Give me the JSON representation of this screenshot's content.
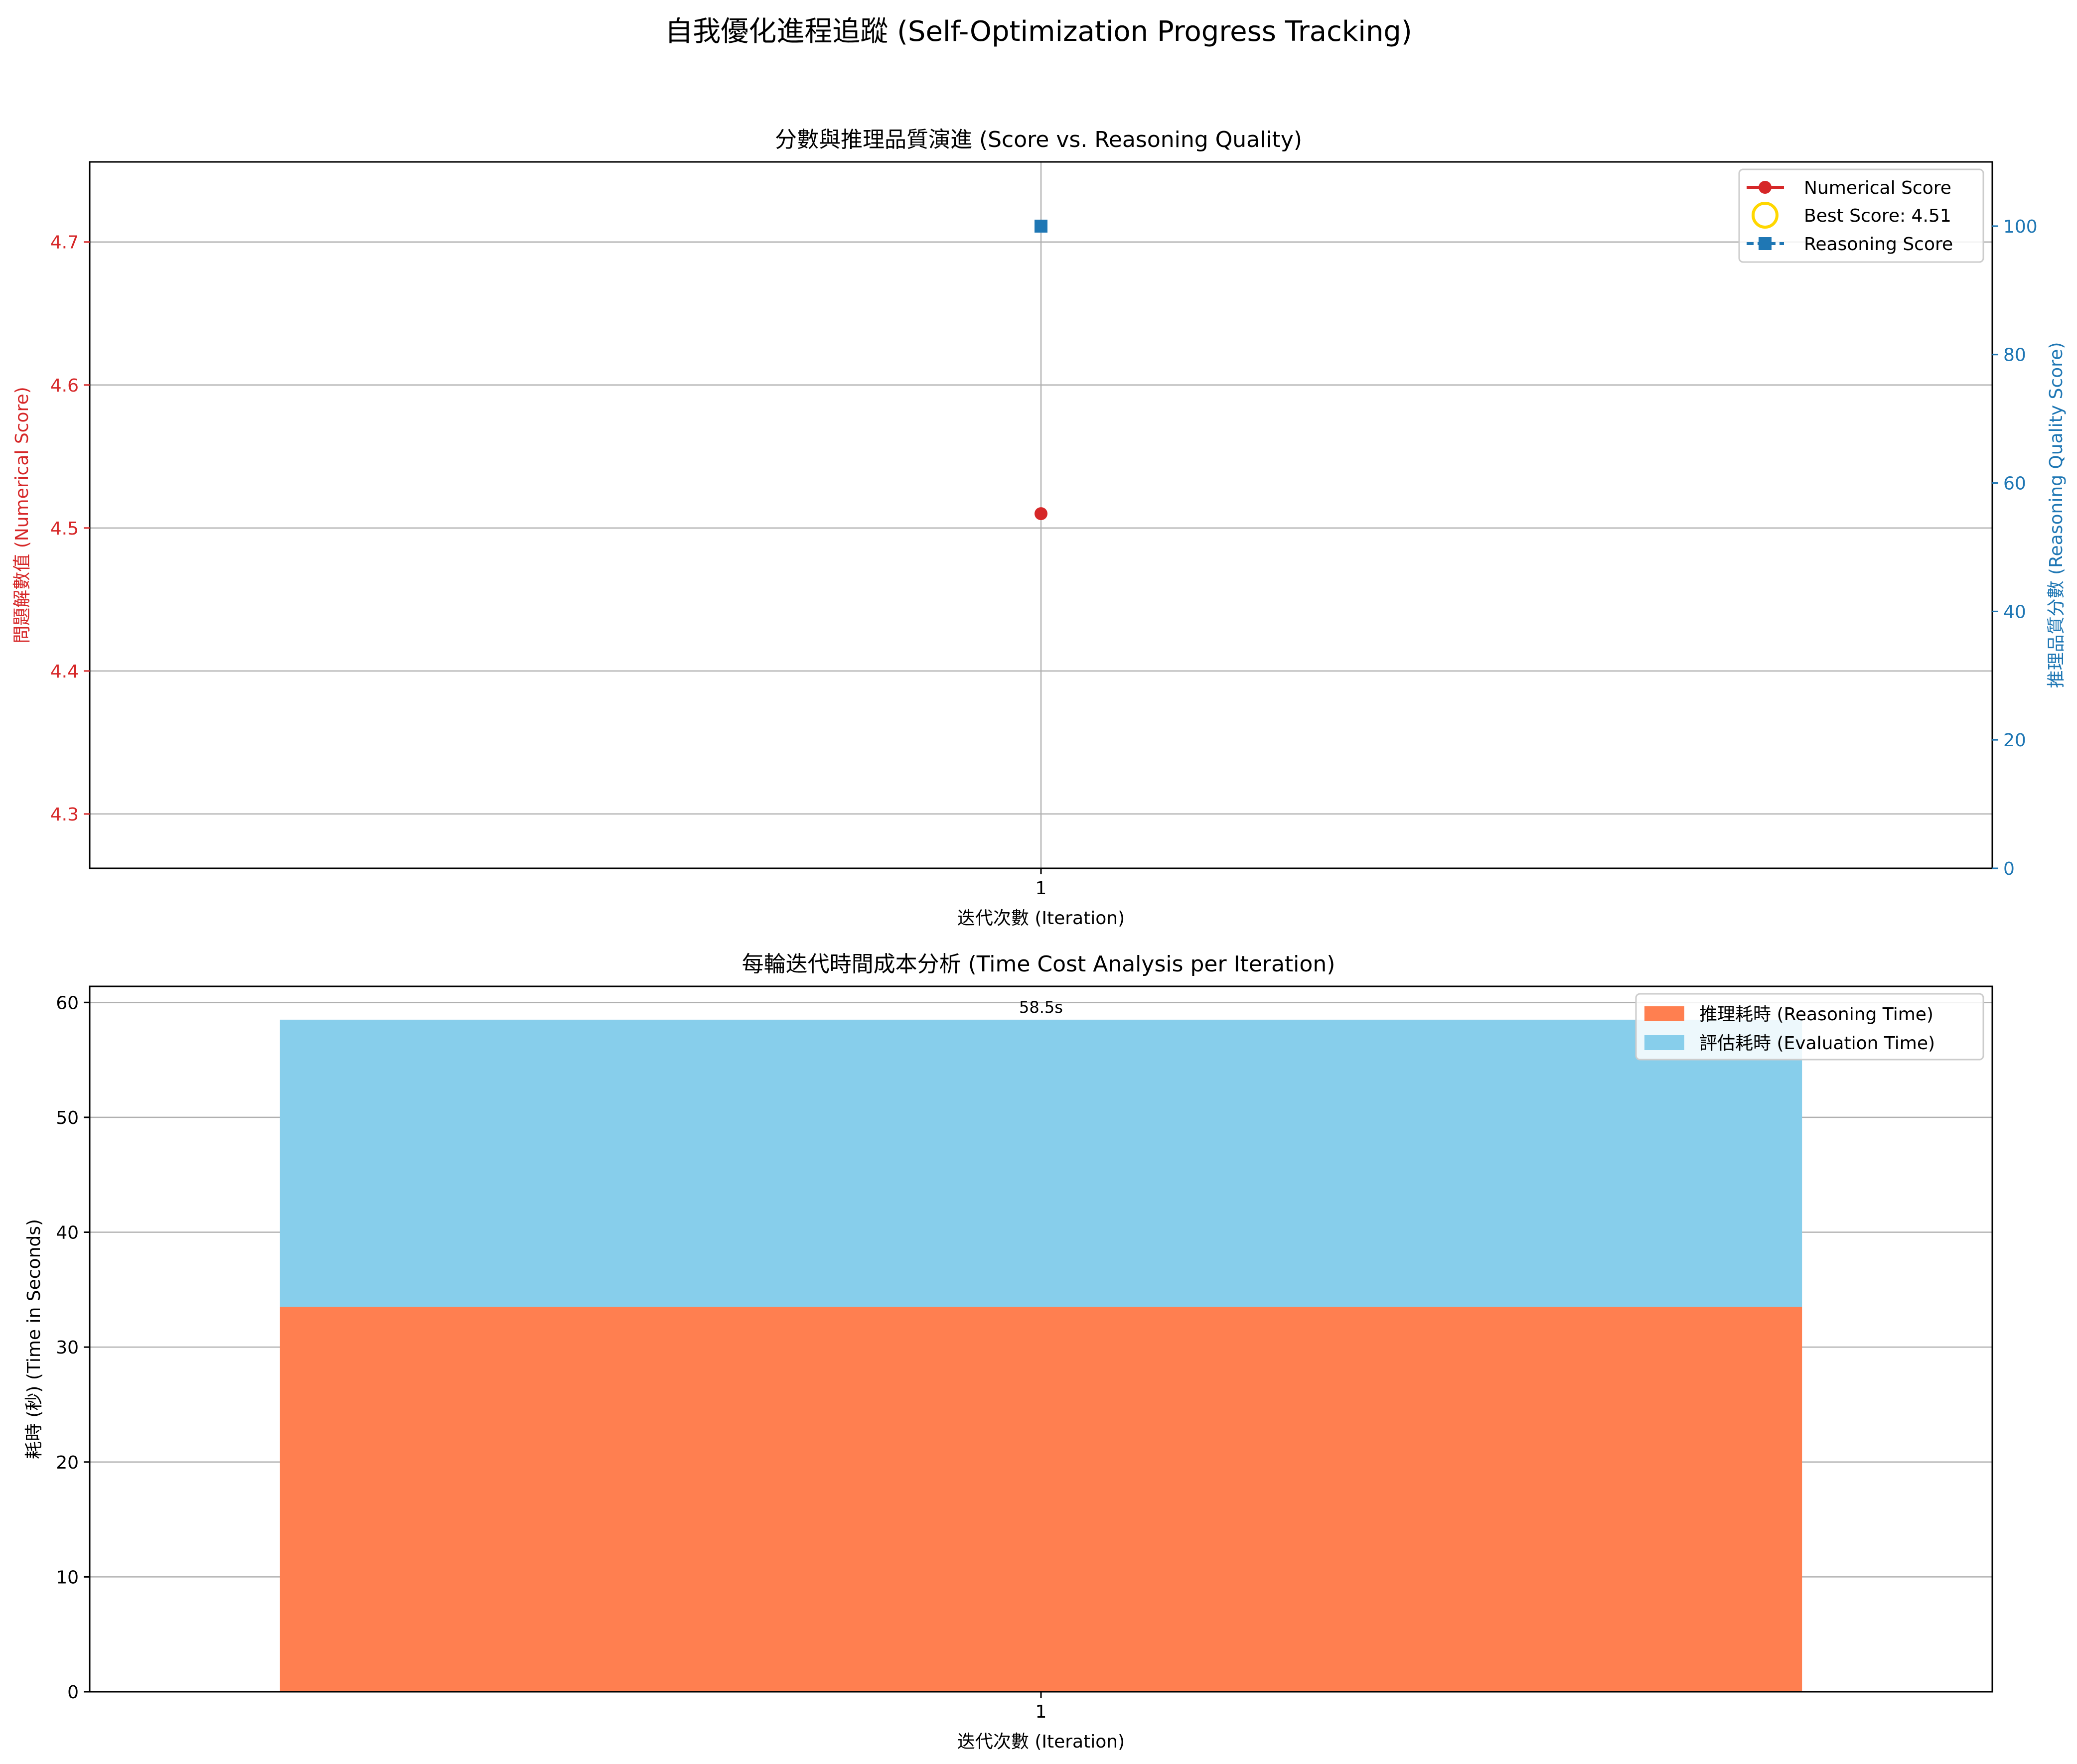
{
  "figure_title": "自我優化進程追蹤 (Self-Optimization Progress Tracking)",
  "colors": {
    "numerical": "#d62728",
    "best": "#ffd700",
    "reasoning": "#1f77b4",
    "reasoning_time": "#ff7f50",
    "evaluation_time": "#87ceeb",
    "grid": "#b0b0b0",
    "axis": "#000000"
  },
  "chart_data": [
    {
      "type": "line",
      "title": "分數與推理品質演進 (Score vs. Reasoning Quality)",
      "xlabel": "迭代次數 (Iteration)",
      "ylabel_left": "問題解數值 (Numerical Score)",
      "ylabel_right": "推理品質分數 (Reasoning Quality Score)",
      "x": [
        1
      ],
      "x_ticks": [
        "1"
      ],
      "xlim": [
        0.7,
        1.3
      ],
      "ylim_left": [
        4.262,
        4.756
      ],
      "ylim_right": [
        0,
        110
      ],
      "yticks_left": [
        "4.3",
        "4.4",
        "4.5",
        "4.6",
        "4.7"
      ],
      "yticks_right": [
        "0",
        "20",
        "40",
        "60",
        "80",
        "100"
      ],
      "series": [
        {
          "name": "Numerical Score",
          "axis": "left",
          "values": [
            4.51
          ],
          "marker": "circle",
          "color": "#d62728"
        },
        {
          "name": "Best Score: 4.51",
          "axis": "left",
          "values": [
            4.51
          ],
          "marker": "hollow-circle",
          "color": "#ffd700"
        },
        {
          "name": "Reasoning Score",
          "axis": "right",
          "values": [
            100
          ],
          "marker": "square",
          "color": "#1f77b4"
        }
      ],
      "grid": true,
      "legend": "top-right"
    },
    {
      "type": "bar",
      "stacked": true,
      "title": "每輪迭代時間成本分析 (Time Cost Analysis per Iteration)",
      "xlabel": "迭代次數 (Iteration)",
      "ylabel": "耗時 (秒) (Time in Seconds)",
      "categories": [
        "1"
      ],
      "ylim": [
        0,
        61.4
      ],
      "yticks": [
        "0",
        "10",
        "20",
        "30",
        "40",
        "50",
        "60"
      ],
      "series": [
        {
          "name": "推理耗時 (Reasoning Time)",
          "values": [
            33.5
          ],
          "color": "#ff7f50"
        },
        {
          "name": "評估耗時 (Evaluation Time)",
          "values": [
            25.0
          ],
          "color": "#87ceeb"
        }
      ],
      "total_labels": [
        "58.5s"
      ],
      "grid": true,
      "legend": "top-right"
    }
  ]
}
